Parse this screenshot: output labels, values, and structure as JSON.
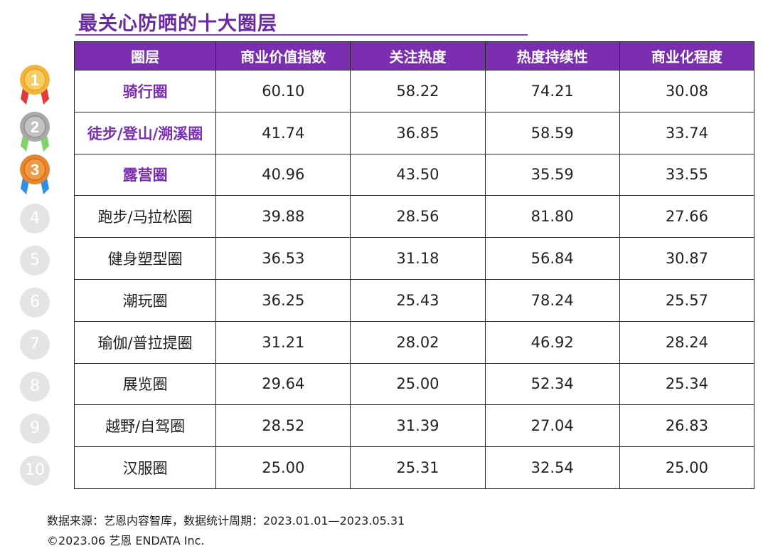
{
  "title": "最关心防晒的十大圈层",
  "columns": [
    "圈层",
    "商业价值指数",
    "关注热度",
    "热度持续性",
    "商业化程度"
  ],
  "rows": [
    {
      "rank": "1",
      "circle": "骑行圈",
      "values": [
        "60.10",
        "58.22",
        "74.21",
        "30.08"
      ]
    },
    {
      "rank": "2",
      "circle": "徒步/登山/溯溪圈",
      "values": [
        "41.74",
        "36.85",
        "58.59",
        "33.74"
      ]
    },
    {
      "rank": "3",
      "circle": "露营圈",
      "values": [
        "40.96",
        "43.50",
        "35.59",
        "33.55"
      ]
    },
    {
      "rank": "4",
      "circle": "跑步/马拉松圈",
      "values": [
        "39.88",
        "28.56",
        "81.80",
        "27.66"
      ]
    },
    {
      "rank": "5",
      "circle": "健身塑型圈",
      "values": [
        "36.53",
        "31.18",
        "56.84",
        "30.87"
      ]
    },
    {
      "rank": "6",
      "circle": "潮玩圈",
      "values": [
        "36.25",
        "25.43",
        "78.24",
        "25.57"
      ]
    },
    {
      "rank": "7",
      "circle": "瑜伽/普拉提圈",
      "values": [
        "31.21",
        "28.02",
        "46.92",
        "28.24"
      ]
    },
    {
      "rank": "8",
      "circle": "展览圈",
      "values": [
        "29.64",
        "25.00",
        "52.34",
        "25.34"
      ]
    },
    {
      "rank": "9",
      "circle": "越野/自驾圈",
      "values": [
        "28.52",
        "31.39",
        "27.04",
        "26.83"
      ]
    },
    {
      "rank": "10",
      "circle": "汉服圈",
      "values": [
        "25.00",
        "25.31",
        "32.54",
        "25.00"
      ]
    }
  ],
  "medals": [
    {
      "icon": "gold-medal-icon",
      "color": "#f2b53a",
      "ribbon": "#e23b3b"
    },
    {
      "icon": "silver-medal-icon",
      "color": "#a9a9a9",
      "ribbon": "#7ed36a"
    },
    {
      "icon": "bronze-medal-icon",
      "color": "#e8862e",
      "ribbon": "#2f8fe8"
    }
  ],
  "footer": {
    "source": "数据来源：艺恩内容智库，数据统计周期：2023.01.01—2023.05.31",
    "copyright": "©2023.06 艺恩 ENDATA Inc."
  },
  "colors": {
    "accent": "#7b2fb0",
    "title": "#6a2aa0",
    "rank_circle": "#e4e4e4"
  }
}
